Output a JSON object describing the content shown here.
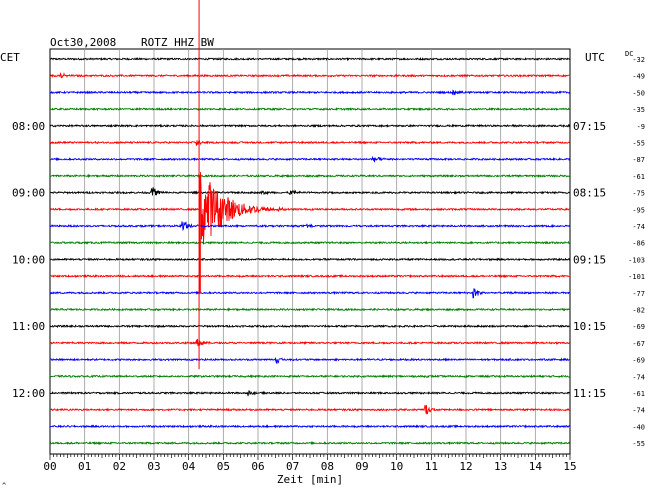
{
  "header": {
    "date": "Oct30,2008",
    "station": "ROTZ HHZ BW",
    "left_zone": "CET",
    "right_zone": "UTC",
    "dc_label": "DC"
  },
  "chart_data": {
    "type": "line",
    "title": "Oct30,2008    ROTZ HHZ BW",
    "xlabel": "Zeit [min]",
    "x_ticks": [
      "00",
      "01",
      "02",
      "03",
      "04",
      "05",
      "06",
      "07",
      "08",
      "09",
      "10",
      "11",
      "12",
      "13",
      "14",
      "15"
    ],
    "xlim": [
      0,
      15
    ],
    "grid": true,
    "left_time_labels": [
      {
        "row": 4,
        "label": "08:00"
      },
      {
        "row": 8,
        "label": "09:00"
      },
      {
        "row": 12,
        "label": "10:00"
      },
      {
        "row": 16,
        "label": "11:00"
      },
      {
        "row": 20,
        "label": "12:00"
      }
    ],
    "right_time_labels": [
      {
        "row": 4,
        "label": "07:15"
      },
      {
        "row": 8,
        "label": "08:15"
      },
      {
        "row": 12,
        "label": "09:15"
      },
      {
        "row": 16,
        "label": "10:15"
      },
      {
        "row": 20,
        "label": "11:15"
      }
    ],
    "row_colors": [
      "#000000",
      "#ff0000",
      "#0000ff",
      "#008000"
    ],
    "dc_offsets": [
      -32,
      -49,
      -50,
      -35,
      -9,
      -55,
      -87,
      -61,
      -75,
      -95,
      -74,
      -86,
      -103,
      -101,
      -77,
      -82,
      -69,
      -67,
      -69,
      -74,
      -61,
      -74,
      -40,
      -55
    ],
    "events": [
      {
        "row": 1,
        "minute": 0.3,
        "amp": 3
      },
      {
        "row": 2,
        "minute": 11.6,
        "amp": 4
      },
      {
        "row": 5,
        "minute": 4.2,
        "amp": 4
      },
      {
        "row": 6,
        "minute": 9.3,
        "amp": 4
      },
      {
        "row": 8,
        "minute": 2.9,
        "amp": 9
      },
      {
        "row": 8,
        "minute": 6.9,
        "amp": 4
      },
      {
        "row": 8,
        "minute": 6.1,
        "amp": 3
      },
      {
        "row": 9,
        "minute": 4.3,
        "amp": 48,
        "main_quake": true
      },
      {
        "row": 10,
        "minute": 3.8,
        "amp": 9
      },
      {
        "row": 10,
        "minute": 7.4,
        "amp": 3
      },
      {
        "row": 14,
        "minute": 12.2,
        "amp": 7
      },
      {
        "row": 17,
        "minute": 4.2,
        "amp": 7
      },
      {
        "row": 18,
        "minute": 6.5,
        "amp": 5
      },
      {
        "row": 20,
        "minute": 5.7,
        "amp": 3
      },
      {
        "row": 21,
        "minute": 10.8,
        "amp": 7
      }
    ]
  },
  "footer": {
    "corner_mark": "^"
  }
}
